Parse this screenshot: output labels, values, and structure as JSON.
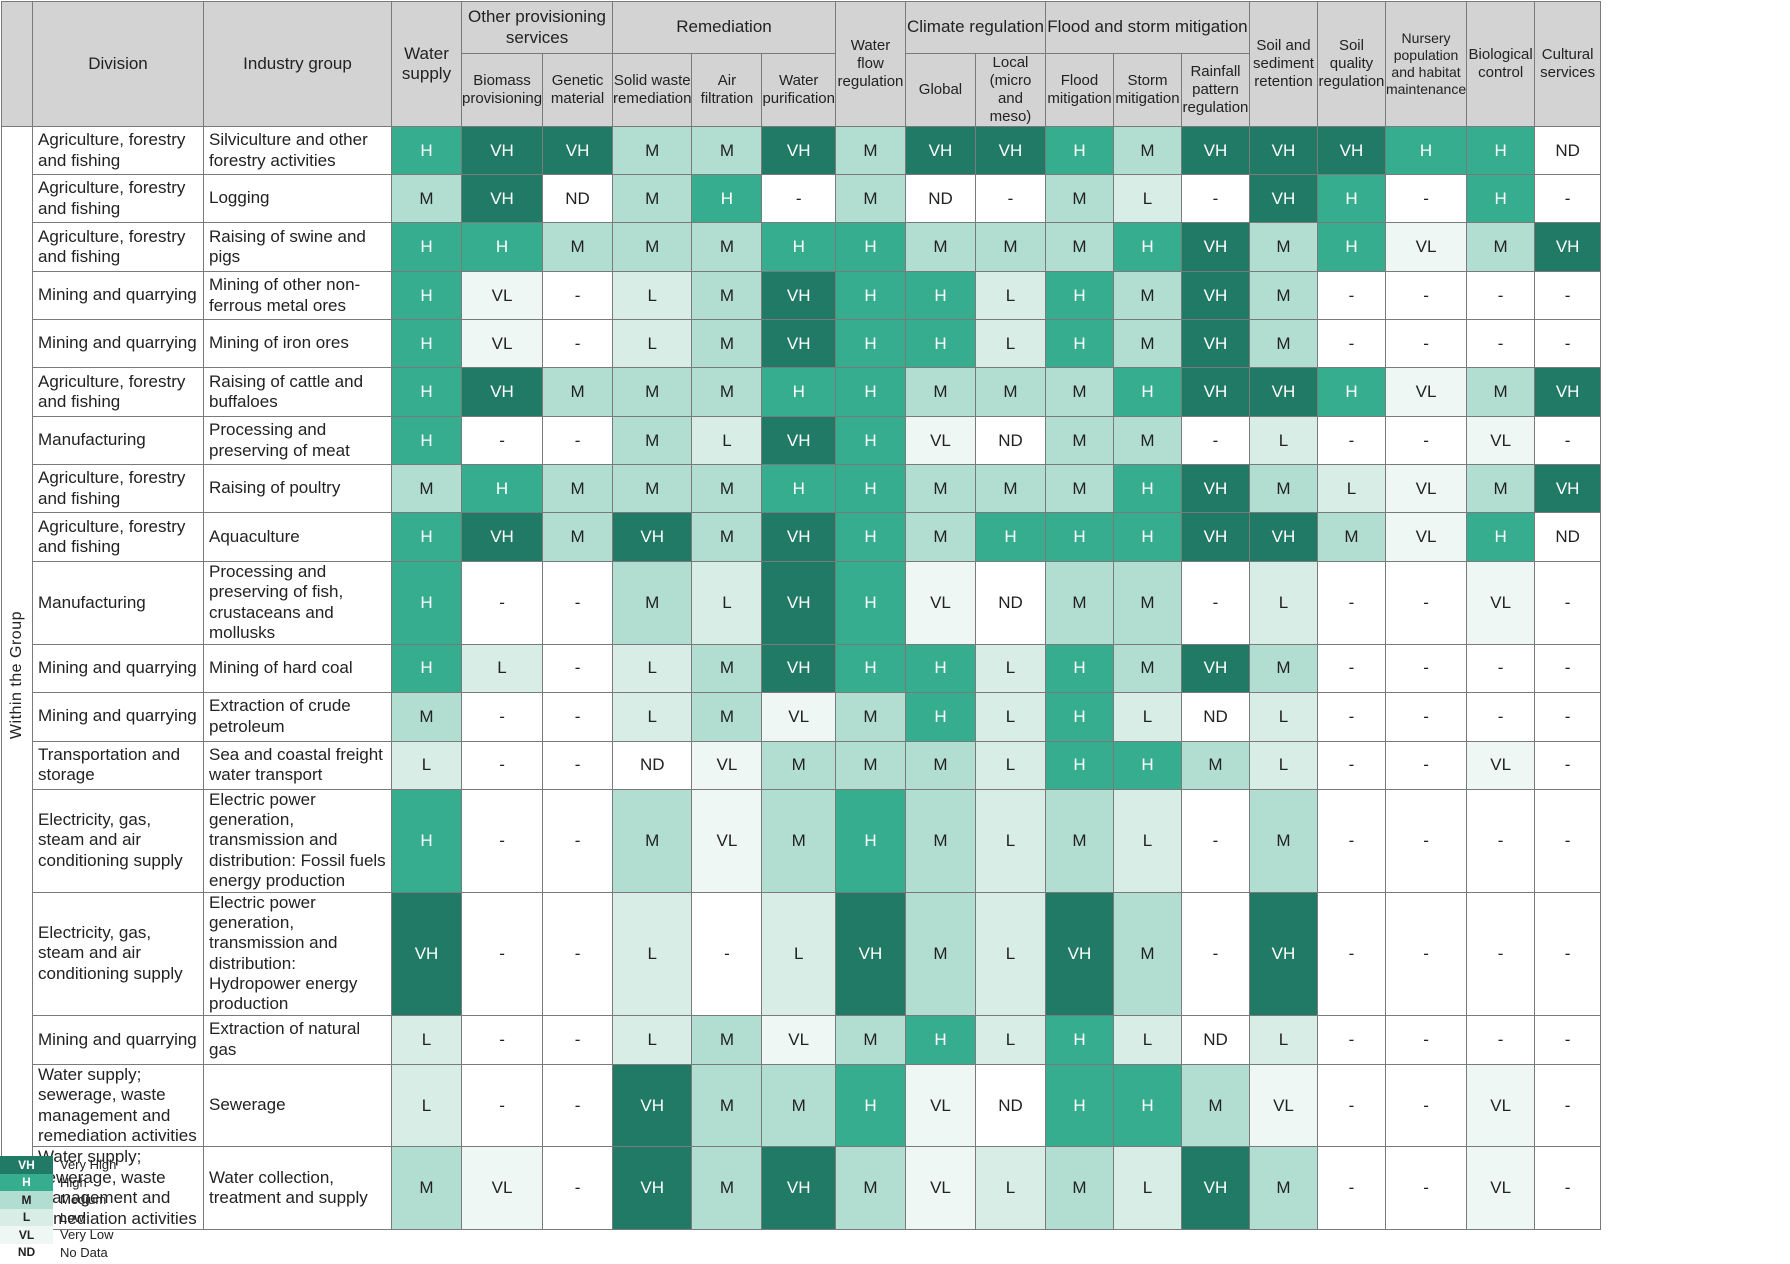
{
  "side_label": "Within the Group",
  "headers": {
    "division": "Division",
    "industry_group": "Industry group",
    "water_supply": "Water supply",
    "other_provisioning": "Other provisioning services",
    "biomass": "Biomass provisioning",
    "genetic": "Genetic material",
    "remediation": "Remediation",
    "solid_waste": "Solid waste remediation",
    "air_filtration": "Air filtration",
    "water_purification": "Water purification",
    "water_flow": "Water flow regulation",
    "climate": "Climate regulation",
    "global": "Global",
    "local": "Local (micro and meso)",
    "flood_storm": "Flood and storm mitigation",
    "flood": "Flood mitigation",
    "storm": "Storm mitigation",
    "rainfall": "Rainfall pattern regulation",
    "soil_sediment": "Soil and sediment retention",
    "soil_quality": "Soil quality regulation",
    "nursery": "Nursery population and habitat maintenance",
    "biological": "Biological control",
    "cultural": "Cultural services"
  },
  "rows": [
    {
      "division": "Agriculture, forestry and fishing",
      "group": "Silviculture and other forestry activities",
      "ratings": [
        "H",
        "VH",
        "VH",
        "M",
        "M",
        "VH",
        "M",
        "VH",
        "VH",
        "H",
        "M",
        "VH",
        "VH",
        "VH",
        "H",
        "H",
        "ND"
      ]
    },
    {
      "division": "Agriculture, forestry and fishing",
      "group": "Logging",
      "ratings": [
        "M",
        "VH",
        "ND",
        "M",
        "H",
        "-",
        "M",
        "ND",
        "-",
        "M",
        "L",
        "-",
        "VH",
        "H",
        "-",
        "H",
        "-"
      ]
    },
    {
      "division": "Agriculture, forestry and fishing",
      "group": "Raising of swine and pigs",
      "ratings": [
        "H",
        "H",
        "M",
        "M",
        "M",
        "H",
        "H",
        "M",
        "M",
        "M",
        "H",
        "VH",
        "M",
        "H",
        "VL",
        "M",
        "VH"
      ]
    },
    {
      "division": "Mining and quarrying",
      "group": "Mining of other non-ferrous metal ores",
      "ratings": [
        "H",
        "VL",
        "-",
        "L",
        "M",
        "VH",
        "H",
        "H",
        "L",
        "H",
        "M",
        "VH",
        "M",
        "-",
        "-",
        "-",
        "-"
      ]
    },
    {
      "division": "Mining and quarrying",
      "group": "Mining of iron ores",
      "ratings": [
        "H",
        "VL",
        "-",
        "L",
        "M",
        "VH",
        "H",
        "H",
        "L",
        "H",
        "M",
        "VH",
        "M",
        "-",
        "-",
        "-",
        "-"
      ]
    },
    {
      "division": "Agriculture, forestry and fishing",
      "group": "Raising of cattle and buffaloes",
      "ratings": [
        "H",
        "VH",
        "M",
        "M",
        "M",
        "H",
        "H",
        "M",
        "M",
        "M",
        "H",
        "VH",
        "VH",
        "H",
        "VL",
        "M",
        "VH"
      ]
    },
    {
      "division": "Manufacturing",
      "group": "Processing and preserving of meat",
      "ratings": [
        "H",
        "-",
        "-",
        "M",
        "L",
        "VH",
        "H",
        "VL",
        "ND",
        "M",
        "M",
        "-",
        "L",
        "-",
        "-",
        "VL",
        "-"
      ]
    },
    {
      "division": "Agriculture, forestry and fishing",
      "group": "Raising of poultry",
      "ratings": [
        "M",
        "H",
        "M",
        "M",
        "M",
        "H",
        "H",
        "M",
        "M",
        "M",
        "H",
        "VH",
        "M",
        "L",
        "VL",
        "M",
        "VH"
      ]
    },
    {
      "division": "Agriculture, forestry and fishing",
      "group": "Aquaculture",
      "ratings": [
        "H",
        "VH",
        "M",
        "VH",
        "M",
        "VH",
        "H",
        "M",
        "H",
        "H",
        "H",
        "VH",
        "VH",
        "M",
        "VL",
        "H",
        "ND"
      ]
    },
    {
      "division": "Manufacturing",
      "group": "Processing and preserving of fish, crustaceans and mollusks",
      "ratings": [
        "H",
        "-",
        "-",
        "M",
        "L",
        "VH",
        "H",
        "VL",
        "ND",
        "M",
        "M",
        "-",
        "L",
        "-",
        "-",
        "VL",
        "-"
      ]
    },
    {
      "division": "Mining and quarrying",
      "group": "Mining of hard coal",
      "ratings": [
        "H",
        "L",
        "-",
        "L",
        "M",
        "VH",
        "H",
        "H",
        "L",
        "H",
        "M",
        "VH",
        "M",
        "-",
        "-",
        "-",
        "-"
      ]
    },
    {
      "division": "Mining and quarrying",
      "group": "Extraction of crude petroleum",
      "ratings": [
        "M",
        "-",
        "-",
        "L",
        "M",
        "VL",
        "M",
        "H",
        "L",
        "H",
        "L",
        "ND",
        "L",
        "-",
        "-",
        "-",
        "-"
      ]
    },
    {
      "division": "Transportation and storage",
      "group": "Sea and coastal freight water transport",
      "ratings": [
        "L",
        "-",
        "-",
        "ND",
        "VL",
        "M",
        "M",
        "M",
        "L",
        "H",
        "H",
        "M",
        "L",
        "-",
        "-",
        "VL",
        "-"
      ]
    },
    {
      "division": "Electricity, gas, steam and air conditioning supply",
      "group": "Electric power generation, transmission and distribution: Fossil fuels energy production",
      "ratings": [
        "H",
        "-",
        "-",
        "M",
        "VL",
        "M",
        "H",
        "M",
        "L",
        "M",
        "L",
        "-",
        "M",
        "-",
        "-",
        "-",
        "-"
      ]
    },
    {
      "division": "Electricity, gas, steam and air conditioning supply",
      "group": "Electric power generation, transmission and distribution: Hydropower energy production",
      "ratings": [
        "VH",
        "-",
        "-",
        "L",
        "-",
        "L",
        "VH",
        "M",
        "L",
        "VH",
        "M",
        "-",
        "VH",
        "-",
        "-",
        "-",
        "-"
      ]
    },
    {
      "division": "Mining and quarrying",
      "group": "Extraction of natural gas",
      "ratings": [
        "L",
        "-",
        "-",
        "L",
        "M",
        "VL",
        "M",
        "H",
        "L",
        "H",
        "L",
        "ND",
        "L",
        "-",
        "-",
        "-",
        "-"
      ]
    },
    {
      "division": "Water supply; sewerage, waste management and remediation activities",
      "group": "Sewerage",
      "ratings": [
        "L",
        "-",
        "-",
        "VH",
        "M",
        "M",
        "H",
        "VL",
        "ND",
        "H",
        "H",
        "M",
        "VL",
        "-",
        "-",
        "VL",
        "-"
      ]
    },
    {
      "division": "Water supply; sewerage, waste management and remediation activities",
      "group": "Water collection, treatment and supply",
      "ratings": [
        "M",
        "VL",
        "-",
        "VH",
        "M",
        "VH",
        "M",
        "VL",
        "L",
        "M",
        "L",
        "VH",
        "M",
        "-",
        "-",
        "VL",
        "-"
      ]
    }
  ],
  "legend": [
    {
      "code": "VH",
      "label": "Very High"
    },
    {
      "code": "H",
      "label": "High"
    },
    {
      "code": "M",
      "label": "Medium"
    },
    {
      "code": "L",
      "label": "Low"
    },
    {
      "code": "VL",
      "label": "Very Low"
    },
    {
      "code": "ND",
      "label": "No Data"
    }
  ]
}
